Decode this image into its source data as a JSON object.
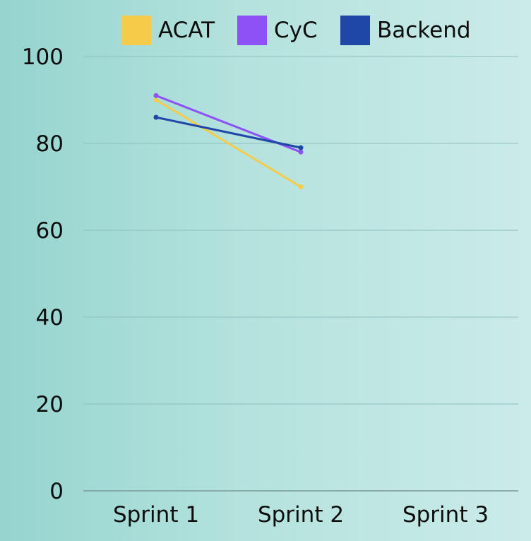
{
  "chart_data": {
    "type": "line",
    "title": "",
    "xlabel": "",
    "ylabel": "",
    "categories": [
      "Sprint 1",
      "Sprint 2",
      "Sprint 3"
    ],
    "ylim": [
      0,
      100
    ],
    "yticks": [
      0,
      20,
      40,
      60,
      80,
      100
    ],
    "grid": true,
    "legend": "top-center",
    "series": [
      {
        "name": "ACAT",
        "color": "#f5cc4a",
        "values": [
          90,
          70,
          null
        ]
      },
      {
        "name": "CyC",
        "color": "#8c52f5",
        "values": [
          91,
          78,
          null
        ]
      },
      {
        "name": "Backend",
        "color": "#1f47a8",
        "values": [
          86,
          79,
          null
        ]
      }
    ]
  }
}
